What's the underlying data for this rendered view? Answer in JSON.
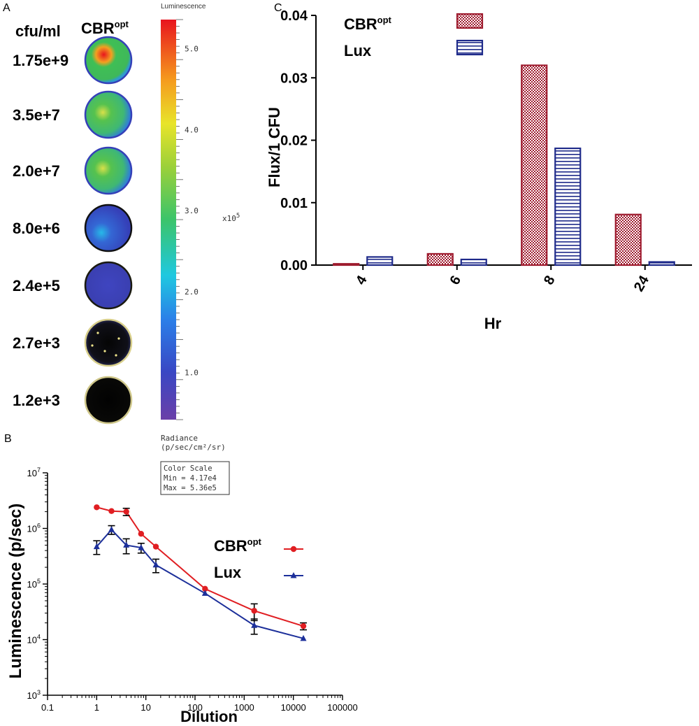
{
  "colors": {
    "cbr": "#9e1b2e",
    "cbr_light": "#f4d7dc",
    "lux": "#1e2a8a",
    "line_red": "#e01e22",
    "line_blue": "#1c2f9a",
    "well_bg": "#3a3fb8"
  },
  "panelA": {
    "letter": "A",
    "col_header": "cfu/ml",
    "col_title_main": "CBR",
    "col_title_sup": "opt",
    "wells": [
      {
        "label": "1.75e+9",
        "intensity": "high"
      },
      {
        "label": "3.5e+7",
        "intensity": "medium"
      },
      {
        "label": "2.0e+7",
        "intensity": "medium"
      },
      {
        "label": "8.0e+6",
        "intensity": "low"
      },
      {
        "label": "2.4e+5",
        "intensity": "very-low"
      },
      {
        "label": "2.7e+3",
        "intensity": "trace"
      },
      {
        "label": "1.2e+3",
        "intensity": "none"
      }
    ],
    "colorbar": {
      "title": "Luminescence",
      "ticks": [
        "5.0",
        "4.0",
        "3.0",
        "2.0",
        "1.0"
      ],
      "tick_values": [
        5.0,
        4.0,
        3.0,
        2.0,
        1.0
      ],
      "range": [
        0.417,
        5.36
      ],
      "exponent": "x10",
      "exponent_sup": "5",
      "unit_line1": "Radiance",
      "unit_line2": "(p/sec/cm²/sr)"
    },
    "color_scale_box": {
      "title": "Color Scale",
      "min": "Min = 4.17e4",
      "max": "Max = 5.36e5"
    }
  },
  "chart_data": [
    {
      "panel": "B",
      "type": "line",
      "xscale": "log",
      "yscale": "log",
      "xlabel": "Dilution",
      "ylabel": "Luminescence (p/sec)",
      "xlim": [
        0.1,
        100000
      ],
      "ylim": [
        1000,
        10000000
      ],
      "x_ticks": [
        "0.1",
        "1",
        "10",
        "100",
        "1000",
        "10000",
        "100000"
      ],
      "x_tick_values": [
        0.1,
        1,
        10,
        100,
        1000,
        10000,
        100000
      ],
      "y_ticks": [
        {
          "base": "10",
          "exp": "3",
          "value": 1000
        },
        {
          "base": "10",
          "exp": "4",
          "value": 10000
        },
        {
          "base": "10",
          "exp": "5",
          "value": 100000
        },
        {
          "base": "10",
          "exp": "6",
          "value": 1000000
        },
        {
          "base": "10",
          "exp": "7",
          "value": 10000000
        }
      ],
      "series": [
        {
          "name": "CBR",
          "name_sup": "opt",
          "color_key": "line_red",
          "marker": "circle",
          "x": [
            1,
            2,
            4,
            8,
            16,
            160,
            1600,
            16000
          ],
          "y": [
            2400000,
            2050000,
            2000000,
            800000,
            470000,
            82000,
            33000,
            17500
          ],
          "err": [
            0,
            0,
            300000,
            0,
            0,
            0,
            11000,
            2500
          ]
        },
        {
          "name": "Lux",
          "color_key": "line_blue",
          "marker": "triangle",
          "x": [
            1,
            2,
            4,
            8,
            16,
            160,
            1600,
            16000
          ],
          "y": [
            470000,
            950000,
            500000,
            450000,
            220000,
            68000,
            18000,
            10500
          ],
          "err": [
            130000,
            170000,
            150000,
            90000,
            60000,
            0,
            5500,
            0
          ]
        }
      ]
    },
    {
      "panel": "C",
      "type": "bar",
      "title": "",
      "xlabel": "Hr",
      "ylabel": "Flux/1 CFU",
      "ylim": [
        0,
        0.04
      ],
      "categories": [
        "4",
        "6",
        "8",
        "24"
      ],
      "y_ticks": [
        "0.00",
        "0.01",
        "0.02",
        "0.03",
        "0.04"
      ],
      "y_tick_values": [
        0,
        0.01,
        0.02,
        0.03,
        0.04
      ],
      "series": [
        {
          "name": "CBR",
          "name_sup": "opt",
          "pattern": "checkered",
          "color_key": "cbr",
          "values": [
            0.0002,
            0.0018,
            0.032,
            0.0081
          ]
        },
        {
          "name": "Lux",
          "pattern": "horizontal-stripes",
          "color_key": "lux",
          "values": [
            0.0013,
            0.0009,
            0.0187,
            0.0005
          ]
        }
      ]
    }
  ]
}
